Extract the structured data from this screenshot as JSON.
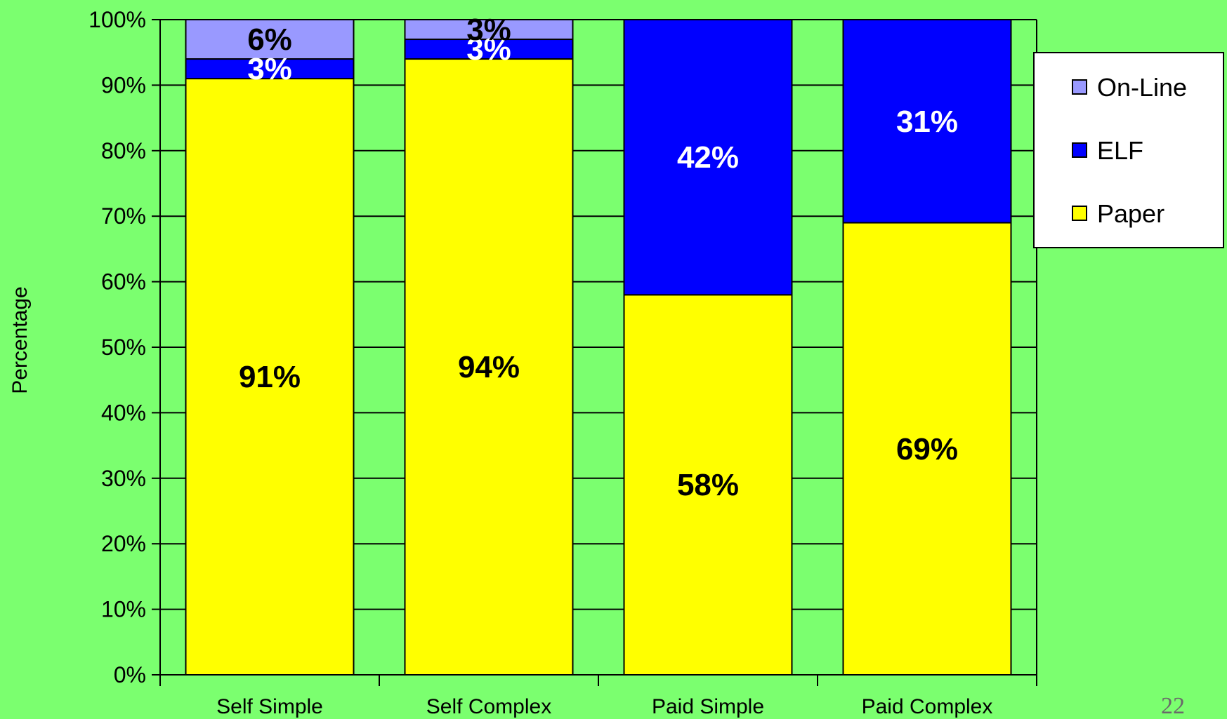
{
  "chart_data": {
    "type": "bar",
    "stacked": true,
    "categories": [
      "Self Simple",
      "Self Complex",
      "Paid Simple",
      "Paid Complex"
    ],
    "series": [
      {
        "name": "Paper",
        "values": [
          91,
          94,
          58,
          69
        ],
        "labels": [
          "91%",
          "94%",
          "58%",
          "69%"
        ],
        "color": "#FFFF00",
        "label_color": "#000000"
      },
      {
        "name": "ELF",
        "values": [
          3,
          3,
          42,
          31
        ],
        "labels": [
          "3%",
          "3%",
          "42%",
          "31%"
        ],
        "color": "#0000FF",
        "label_color": "#FFFFFF"
      },
      {
        "name": "On-Line",
        "values": [
          6,
          3,
          0,
          0
        ],
        "labels": [
          "6%",
          "3%",
          "",
          ""
        ],
        "color": "#9999FF",
        "label_color": "#000000"
      }
    ],
    "legend_order": [
      "On-Line",
      "ELF",
      "Paper"
    ],
    "ylabel": "Percentage",
    "ylim": [
      0,
      100
    ],
    "ytick_step": 10,
    "yticks": [
      "0%",
      "10%",
      "20%",
      "30%",
      "40%",
      "50%",
      "60%",
      "70%",
      "80%",
      "90%",
      "100%"
    ],
    "grid": true,
    "legend_position": "right",
    "background_color": "#7BFF6F"
  },
  "slide": {
    "page_number": "22"
  }
}
